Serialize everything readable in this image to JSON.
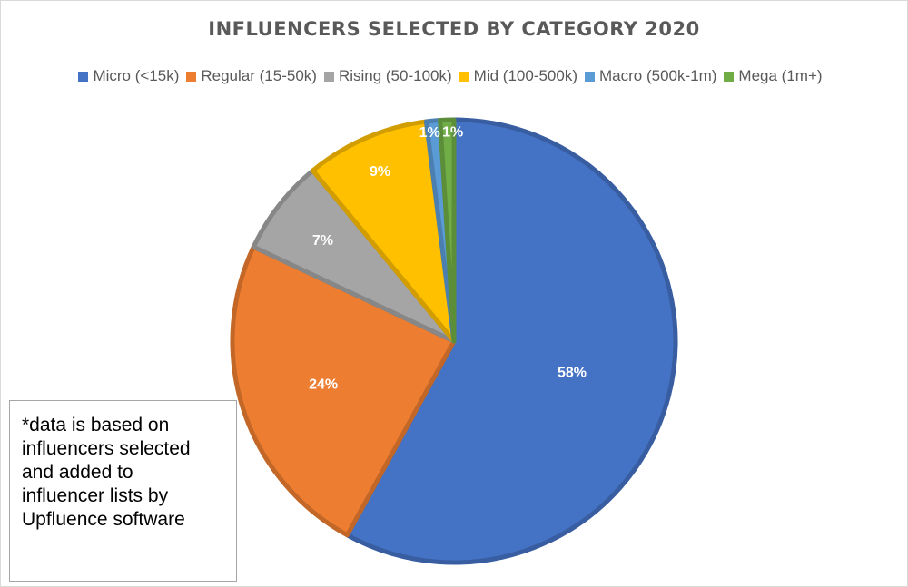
{
  "chart_data": {
    "type": "pie",
    "title": "INFLUENCERS SELECTED BY CATEGORY 2020",
    "legend_position": "top",
    "slices": [
      {
        "name": "Micro (<15k)",
        "value": 58,
        "label": "58%",
        "color": "#4472C4"
      },
      {
        "name": "Regular (15-50k)",
        "value": 24,
        "label": "24%",
        "color": "#ED7D31"
      },
      {
        "name": "Rising (50-100k)",
        "value": 7,
        "label": "7%",
        "color": "#A5A5A5"
      },
      {
        "name": "Mid (100-500k)",
        "value": 9,
        "label": "9%",
        "color": "#FFC000"
      },
      {
        "name": "Macro (500k-1m)",
        "value": 1,
        "label": "1%",
        "color": "#5B9BD5"
      },
      {
        "name": "Mega (1m+)",
        "value": 1,
        "label": "1%",
        "color": "#70AD47"
      }
    ]
  },
  "note": {
    "lines": [
      "*data is based on",
      "influencers selected",
      "and added to",
      "influencer lists by",
      "Upfluence software"
    ]
  }
}
